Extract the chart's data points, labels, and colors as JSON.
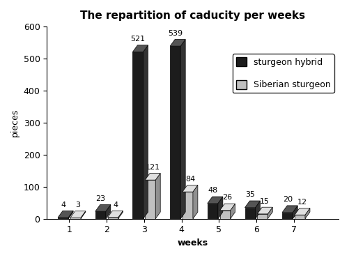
{
  "title": "The repartition of caducity per weeks",
  "xlabel": "weeks",
  "ylabel": "pieces",
  "weeks": [
    1,
    2,
    3,
    4,
    5,
    6,
    7
  ],
  "sturgeon_hybrid": [
    4,
    23,
    521,
    539,
    48,
    35,
    20
  ],
  "siberian_sturgeon": [
    3,
    4,
    121,
    84,
    26,
    15,
    12
  ],
  "hybrid_front": "#1c1c1c",
  "hybrid_top": "#555555",
  "hybrid_side": "#333333",
  "siberian_front": "#c0c0c0",
  "siberian_top": "#e0e0e0",
  "siberian_side": "#909090",
  "ylim": [
    0,
    600
  ],
  "yticks": [
    0,
    100,
    200,
    300,
    400,
    500,
    600
  ],
  "bar_width": 0.28,
  "depth": 0.13,
  "depth_y_ratio": 0.035,
  "legend_labels": [
    "sturgeon hybrid",
    "Siberian sturgeon"
  ],
  "background_color": "#ffffff",
  "label_fontsize": 9,
  "title_fontsize": 11,
  "annotation_fontsize": 8,
  "xlim": [
    0.4,
    8.2
  ]
}
